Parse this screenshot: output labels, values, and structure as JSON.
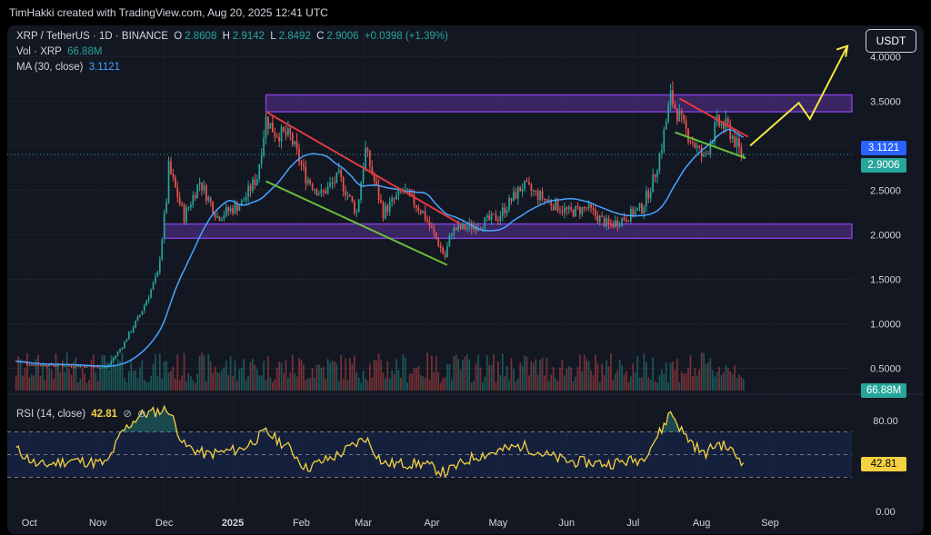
{
  "header": {
    "text": "TimHakki created with TradingView.com, Aug 20, 2025 12:41 UTC"
  },
  "legend": {
    "symbol": "XRP / TetherUS · 1D · BINANCE",
    "o_label": "O",
    "o_value": "2.8608",
    "h_label": "H",
    "h_value": "2.9142",
    "l_label": "L",
    "l_value": "2.8492",
    "c_label": "C",
    "c_value": "2.9006",
    "change": "+0.0398 (+1.39%)",
    "vol_label": "Vol · XRP",
    "vol_value": "66.88M",
    "ma_label": "MA (30, close)",
    "ma_value": "3.1121",
    "rsi_label": "RSI (14, close)",
    "rsi_value": "42.81"
  },
  "currency_button": "USDT",
  "tags": {
    "ma": "3.1121",
    "close": "2.9006",
    "volume": "66.88M",
    "rsi": "42.81"
  },
  "colors": {
    "up": "#26a69a",
    "down": "#ef5350",
    "ma": "#4aa3ff",
    "zone": "#7e3fd6",
    "resistance_line": "#e0393e",
    "support_line": "#6abf3a",
    "projection": "#f5e642",
    "rsi_line": "#f5d142"
  },
  "chart_data": [
    {
      "type": "candlestick",
      "title": "XRP / TetherUS · 1D · BINANCE",
      "x_ticks": [
        "Oct",
        "Nov",
        "Dec",
        "2025",
        "Feb",
        "Mar",
        "Apr",
        "May",
        "Jun",
        "Jul",
        "Aug",
        "Sep"
      ],
      "y_ticks": [
        "0.5000",
        "1.0000",
        "1.5000",
        "2.0000",
        "2.5000",
        "3.0000",
        "3.5000",
        "4.0000"
      ],
      "ylim": [
        0.25,
        4.35
      ],
      "anchor_path": [
        [
          "2024-09-25",
          0.58
        ],
        [
          "2024-10-03",
          0.54
        ],
        [
          "2024-10-20",
          0.53
        ],
        [
          "2024-11-05",
          0.51
        ],
        [
          "2024-11-12",
          0.75
        ],
        [
          "2024-11-20",
          1.1
        ],
        [
          "2024-11-28",
          1.55
        ],
        [
          "2024-12-02",
          2.4
        ],
        [
          "2024-12-03",
          2.75
        ],
        [
          "2024-12-10",
          2.2
        ],
        [
          "2024-12-17",
          2.6
        ],
        [
          "2024-12-25",
          2.2
        ],
        [
          "2025-01-05",
          2.35
        ],
        [
          "2025-01-12",
          2.65
        ],
        [
          "2025-01-16",
          3.3
        ],
        [
          "2025-01-20",
          3.15
        ],
        [
          "2025-01-27",
          3.1
        ],
        [
          "2025-02-03",
          2.65
        ],
        [
          "2025-02-10",
          2.45
        ],
        [
          "2025-02-18",
          2.65
        ],
        [
          "2025-02-26",
          2.25
        ],
        [
          "2025-03-02",
          2.95
        ],
        [
          "2025-03-10",
          2.25
        ],
        [
          "2025-03-19",
          2.5
        ],
        [
          "2025-03-28",
          2.25
        ],
        [
          "2025-04-07",
          1.75
        ],
        [
          "2025-04-10",
          2.05
        ],
        [
          "2025-04-20",
          2.1
        ],
        [
          "2025-05-01",
          2.2
        ],
        [
          "2025-05-12",
          2.55
        ],
        [
          "2025-05-22",
          2.4
        ],
        [
          "2025-06-02",
          2.25
        ],
        [
          "2025-06-10",
          2.3
        ],
        [
          "2025-06-20",
          2.1
        ],
        [
          "2025-06-28",
          2.2
        ],
        [
          "2025-07-05",
          2.3
        ],
        [
          "2025-07-10",
          2.6
        ],
        [
          "2025-07-14",
          3.0
        ],
        [
          "2025-07-18",
          3.55
        ],
        [
          "2025-07-24",
          3.2
        ],
        [
          "2025-08-02",
          2.85
        ],
        [
          "2025-08-08",
          3.25
        ],
        [
          "2025-08-13",
          3.2
        ],
        [
          "2025-08-19",
          2.9
        ]
      ],
      "last_bar": {
        "date": "2025-08-20",
        "open": 2.8608,
        "high": 2.9142,
        "low": 2.8492,
        "close": 2.9006
      },
      "indicators": {
        "ma_period": 30,
        "ma_last": 3.1121,
        "volume_last": "66.88M"
      },
      "annotations": {
        "resistance_zone": [
          3.38,
          3.57
        ],
        "support_zone": [
          1.96,
          2.12
        ],
        "descending_resistance": [
          [
            "2025-01-16",
            3.38
          ],
          [
            "2025-04-14",
            2.12
          ]
        ],
        "descending_support": [
          [
            "2025-01-16",
            2.6
          ],
          [
            "2025-04-08",
            1.66
          ]
        ],
        "aug_resistance": [
          [
            "2025-07-22",
            3.53
          ],
          [
            "2025-08-22",
            3.1
          ]
        ],
        "aug_support": [
          [
            "2025-07-20",
            3.15
          ],
          [
            "2025-08-21",
            2.86
          ]
        ],
        "projection_arrow": [
          [
            "2025-08-23",
            3.0
          ],
          [
            "2025-09-14",
            3.48
          ],
          [
            "2025-09-19",
            3.3
          ],
          [
            "2025-10-06",
            4.12
          ]
        ]
      }
    },
    {
      "type": "line",
      "title": "RSI (14, close)",
      "y_ticks": [
        "0.00",
        "80.00"
      ],
      "ylim": [
        0,
        100
      ],
      "bands": [
        30,
        50,
        70
      ],
      "last": 42.81,
      "anchor_path": [
        [
          "2024-09-25",
          55
        ],
        [
          "2024-10-05",
          40
        ],
        [
          "2024-10-20",
          45
        ],
        [
          "2024-11-05",
          42
        ],
        [
          "2024-11-12",
          70
        ],
        [
          "2024-11-20",
          85
        ],
        [
          "2024-12-03",
          90
        ],
        [
          "2024-12-10",
          58
        ],
        [
          "2024-12-20",
          50
        ],
        [
          "2025-01-05",
          55
        ],
        [
          "2025-01-16",
          70
        ],
        [
          "2025-01-27",
          55
        ],
        [
          "2025-02-03",
          38
        ],
        [
          "2025-02-18",
          50
        ],
        [
          "2025-03-02",
          65
        ],
        [
          "2025-03-10",
          42
        ],
        [
          "2025-03-28",
          42
        ],
        [
          "2025-04-07",
          34
        ],
        [
          "2025-04-20",
          48
        ],
        [
          "2025-05-12",
          58
        ],
        [
          "2025-05-22",
          50
        ],
        [
          "2025-06-02",
          44
        ],
        [
          "2025-06-20",
          42
        ],
        [
          "2025-07-05",
          46
        ],
        [
          "2025-07-14",
          72
        ],
        [
          "2025-07-18",
          88
        ],
        [
          "2025-07-24",
          68
        ],
        [
          "2025-08-02",
          50
        ],
        [
          "2025-08-08",
          60
        ],
        [
          "2025-08-13",
          56
        ],
        [
          "2025-08-20",
          42.81
        ]
      ]
    }
  ]
}
